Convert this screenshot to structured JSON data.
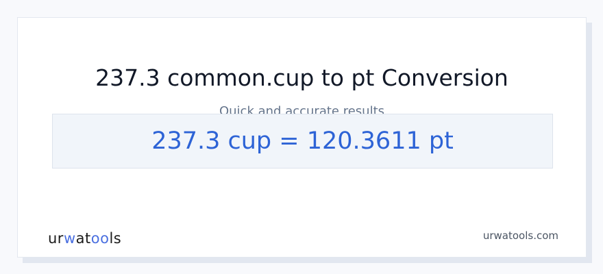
{
  "title": "237.3 common.cup to pt Conversion",
  "subtitle": "Quick and accurate results",
  "result": "237.3 cup = 120.3611 pt",
  "logo": {
    "text": "urwatools",
    "parts": [
      "ur",
      "w",
      "at",
      "oo",
      "ls"
    ]
  },
  "site": "urwatools.com",
  "colors": {
    "accent": "#2d63d6",
    "title": "#111827",
    "subtitle": "#64748b",
    "result_bg": "#f1f5fa"
  }
}
